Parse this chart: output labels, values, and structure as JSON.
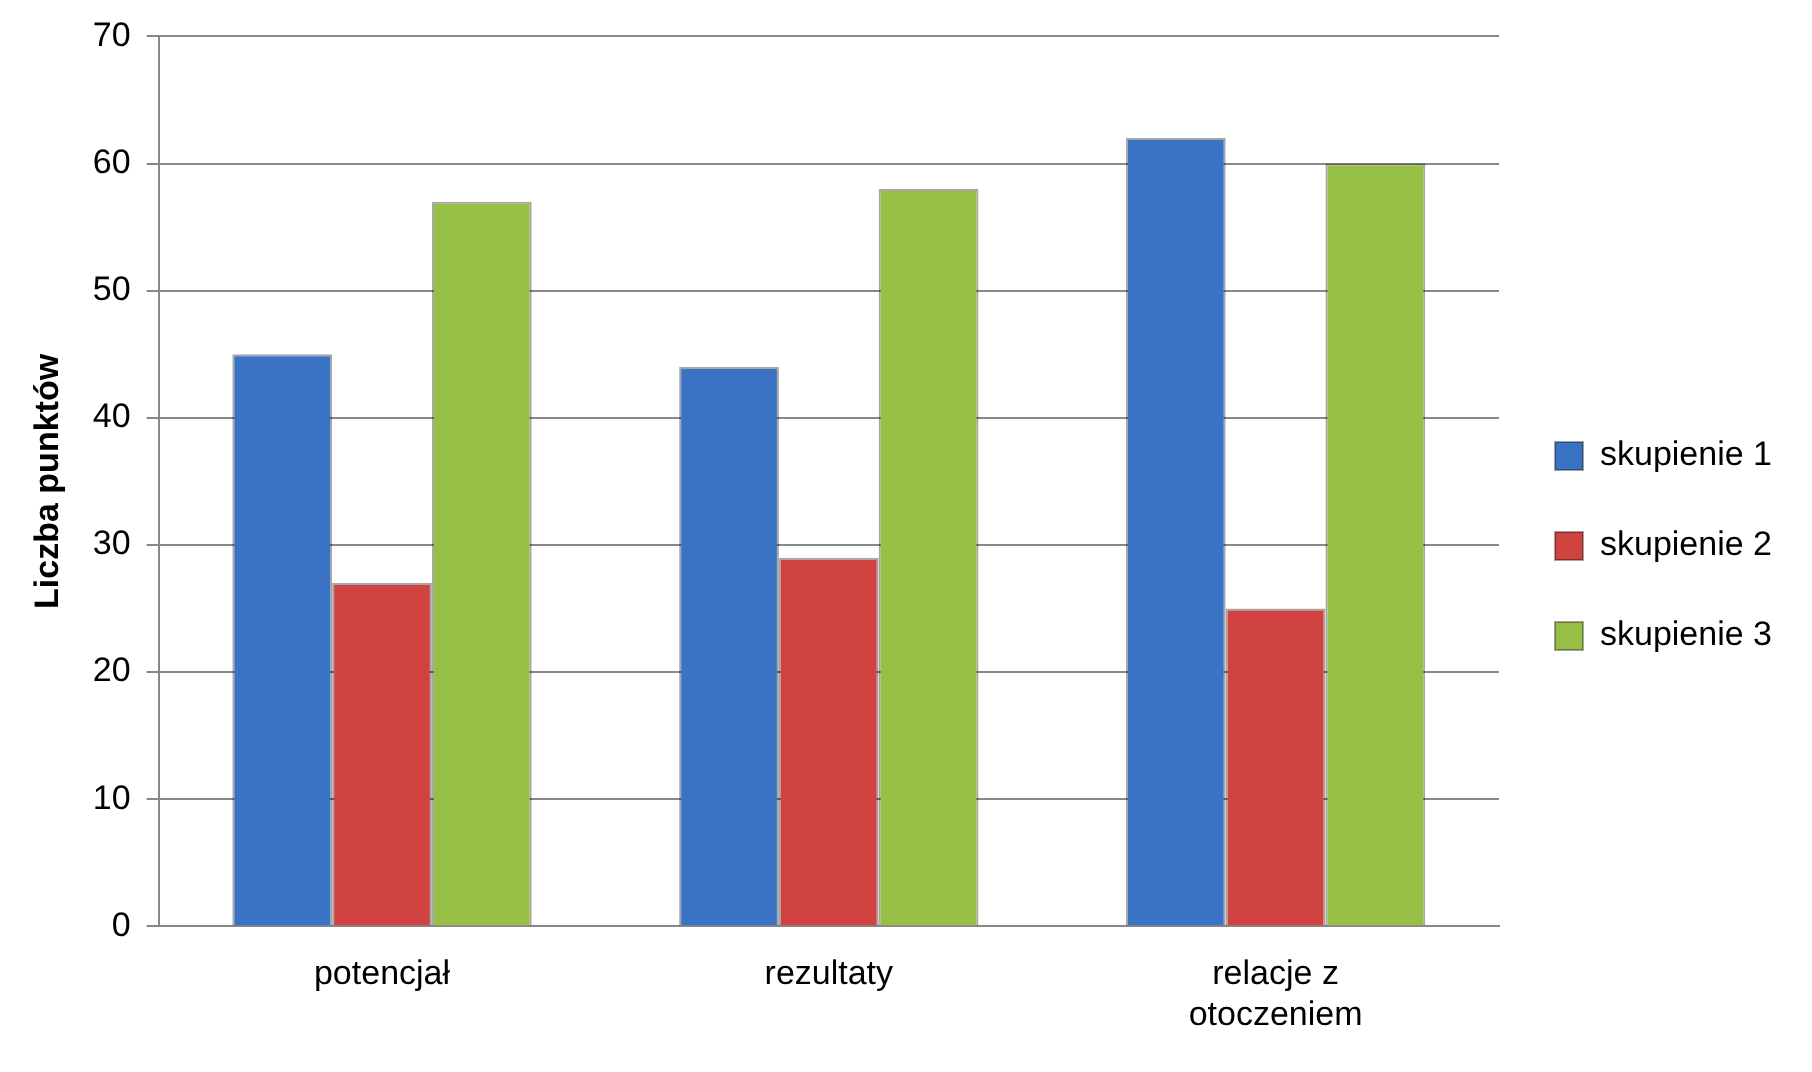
{
  "chart_data": {
    "type": "bar",
    "ylabel": "Liczba punktów",
    "categories": [
      "potencjał",
      "rezultaty",
      "relacje z otoczeniem"
    ],
    "series": [
      {
        "name": "skupienie 1",
        "color": "#3b73c4",
        "values": [
          45,
          44,
          62
        ]
      },
      {
        "name": "skupienie 2",
        "color": "#d04340",
        "values": [
          27,
          29,
          25
        ]
      },
      {
        "name": "skupienie 3",
        "color": "#98bf45",
        "values": [
          57,
          58,
          60
        ]
      }
    ],
    "ylim": [
      0,
      70
    ],
    "yticks": [
      0,
      10,
      20,
      30,
      40,
      50,
      60,
      70
    ],
    "grid": "y",
    "legend": "right"
  }
}
